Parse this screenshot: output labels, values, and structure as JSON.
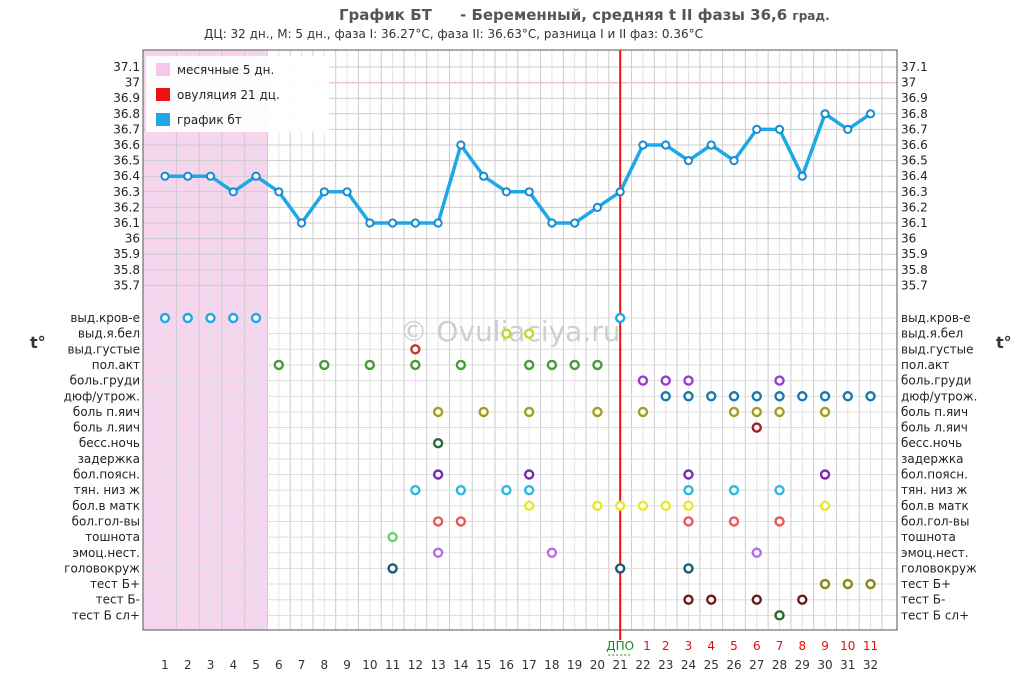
{
  "header": {
    "title": "График БТ",
    "subtitle_main": "- Беременный, средняя t II фазы 36,6",
    "subtitle_unit": "град.",
    "stats": "ДЦ: 32 дн., М: 5 дн., фаза I: 36.27°C, фаза II: 36.63°C, разница I и II фаз: 0.36°C"
  },
  "colors": {
    "line": "#1ea8e8",
    "menses": "#f6d6ee",
    "ovulation": "#ee1111",
    "grid": "#cccccc",
    "threshold": "#f5c6c6"
  },
  "legend": [
    {
      "label": "месячные 5 дн.",
      "color": "#f7c6ea"
    },
    {
      "label": "овуляция 21 дц.",
      "color": "#ee1111"
    },
    {
      "label": "график бт",
      "color": "#1ea8e8"
    }
  ],
  "watermark": "© Ovuliaciya.ru",
  "tdeg_label": "t°",
  "dpo_label": "ДПО",
  "chart_data": {
    "type": "line",
    "x": [
      1,
      2,
      3,
      4,
      5,
      6,
      7,
      8,
      9,
      10,
      11,
      12,
      13,
      14,
      15,
      16,
      17,
      18,
      19,
      20,
      21,
      22,
      23,
      24,
      25,
      26,
      27,
      28,
      29,
      30,
      31,
      32
    ],
    "series": [
      {
        "values": [
          36.4,
          36.4,
          36.4,
          36.3,
          36.4,
          36.3,
          36.1,
          36.3,
          36.3,
          36.1,
          36.1,
          36.1,
          36.1,
          36.6,
          36.4,
          36.3,
          36.3,
          36.1,
          36.1,
          36.2,
          36.3,
          36.6,
          36.6,
          36.5,
          36.6,
          36.5,
          36.7,
          36.7,
          36.4,
          36.8,
          36.7,
          36.8
        ]
      }
    ],
    "y_ticks": [
      "37.1",
      "37",
      "36.9",
      "36.8",
      "36.7",
      "36.6",
      "36.5",
      "36.4",
      "36.3",
      "36.2",
      "36.1",
      "36",
      "35.9",
      "35.8",
      "35.7"
    ],
    "ylim": [
      35.7,
      37.1
    ],
    "threshold": 37.0,
    "menses_days": [
      1,
      5
    ],
    "ovulation_day": 21,
    "dpo_numbers": [
      "1",
      "2",
      "3",
      "4",
      "5",
      "6",
      "7",
      "8",
      "9",
      "10",
      "11"
    ],
    "symptom_rows": [
      {
        "label": "выд.кров-е",
        "color": "#1ea8e8",
        "days": [
          1,
          2,
          3,
          4,
          5,
          21
        ]
      },
      {
        "label": "выд.я.бел",
        "color": "#c8d228",
        "days": [
          16,
          17
        ]
      },
      {
        "label": "выд.густые",
        "color": "#c83232",
        "days": [
          12
        ]
      },
      {
        "label": "пол.акт",
        "color": "#4a9a3a",
        "days": [
          6,
          8,
          10,
          12,
          14,
          17,
          18,
          19,
          20
        ]
      },
      {
        "label": "боль.груди",
        "color": "#9a3ad6",
        "days": [
          22,
          23,
          24,
          28
        ]
      },
      {
        "label": "дюф/утрож.",
        "color": "#1a78b0",
        "days": [
          23,
          24,
          25,
          26,
          27,
          28,
          29,
          30,
          31,
          32
        ]
      },
      {
        "label": "боль п.яич",
        "color": "#a0a020",
        "days": [
          13,
          15,
          17,
          20,
          22,
          26,
          27,
          28,
          30
        ]
      },
      {
        "label": "боль л.яич",
        "color": "#a01e2a",
        "days": [
          27
        ]
      },
      {
        "label": "бесс.ночь",
        "color": "#2a6a3a",
        "days": [
          13
        ]
      },
      {
        "label": "задержка",
        "color": "#888888",
        "days": []
      },
      {
        "label": "бол.поясн.",
        "color": "#7a2ab0",
        "days": [
          13,
          17,
          24,
          30
        ]
      },
      {
        "label": "тян. низ ж",
        "color": "#2ab8e8",
        "days": [
          12,
          14,
          16,
          17,
          24,
          26,
          28
        ]
      },
      {
        "label": "бол.в матк",
        "color": "#e8e830",
        "days": [
          17,
          20,
          21,
          22,
          23,
          24,
          30
        ]
      },
      {
        "label": "бол.гол-вы",
        "color": "#e85a5a",
        "days": [
          13,
          14,
          24,
          26,
          28
        ]
      },
      {
        "label": "тошнота",
        "color": "#6ad26a",
        "days": [
          11
        ]
      },
      {
        "label": "эмоц.нест.",
        "color": "#b86ae8",
        "days": [
          13,
          18,
          27
        ]
      },
      {
        "label": "головокруж",
        "color": "#1a5a7a",
        "days": [
          11,
          21,
          24
        ]
      },
      {
        "label": "тест Б+",
        "color": "#8a8a10",
        "days": [
          30,
          31,
          32
        ]
      },
      {
        "label": "тест Б-",
        "color": "#6a1a1a",
        "days": [
          24,
          25,
          27,
          29
        ]
      },
      {
        "label": "тест Б сл+",
        "color": "#2a6a2a",
        "days": [
          28
        ]
      }
    ]
  }
}
